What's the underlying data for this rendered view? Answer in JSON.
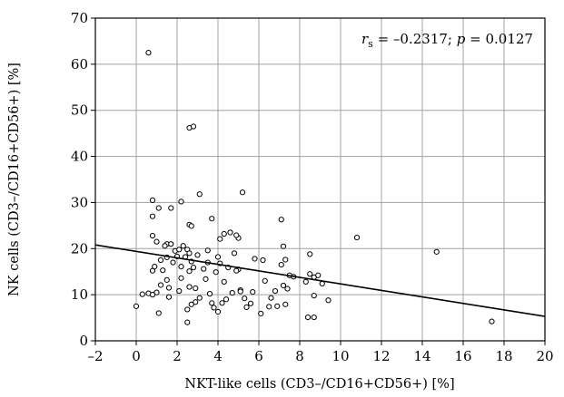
{
  "chart_data": {
    "type": "scatter",
    "xlabel": "NKT-like cells (CD3–/CD16+CD56+) [%]",
    "ylabel": "NK cells (CD3–/CD16+CD56+) [%]",
    "xlim": [
      -2,
      20
    ],
    "ylim": [
      0,
      70
    ],
    "xticks": [
      -2,
      0,
      2,
      4,
      6,
      8,
      10,
      12,
      14,
      16,
      18,
      20
    ],
    "yticks": [
      0,
      10,
      20,
      30,
      40,
      50,
      60,
      70
    ],
    "grid": true,
    "annotation": {
      "r_symbol": "r",
      "r_subscript": "s",
      "r_value": " = –0.2317; ",
      "p_symbol": "p",
      "p_value": " = 0.0127"
    },
    "trendline": {
      "x": [
        -2,
        20
      ],
      "y": [
        20.8,
        5.3
      ]
    },
    "points": [
      [
        0.6,
        62.5
      ],
      [
        2.6,
        46.2
      ],
      [
        2.8,
        46.5
      ],
      [
        0.8,
        30.5
      ],
      [
        2.2,
        30.2
      ],
      [
        3.1,
        31.8
      ],
      [
        5.2,
        32.2
      ],
      [
        1.1,
        28.8
      ],
      [
        1.7,
        28.8
      ],
      [
        0.8,
        27.0
      ],
      [
        3.7,
        26.5
      ],
      [
        7.1,
        26.3
      ],
      [
        2.6,
        25.2
      ],
      [
        2.7,
        24.9
      ],
      [
        4.3,
        23.2
      ],
      [
        4.6,
        23.5
      ],
      [
        5.0,
        22.3
      ],
      [
        4.9,
        22.9
      ],
      [
        10.8,
        22.4
      ],
      [
        4.1,
        22.1
      ],
      [
        0.8,
        22.8
      ],
      [
        1.0,
        21.5
      ],
      [
        1.5,
        21.0
      ],
      [
        1.7,
        21.0
      ],
      [
        1.4,
        20.6
      ],
      [
        2.3,
        20.6
      ],
      [
        2.5,
        19.8
      ],
      [
        7.2,
        20.5
      ],
      [
        14.7,
        19.3
      ],
      [
        1.9,
        19.5
      ],
      [
        2.1,
        19.8
      ],
      [
        2.6,
        19.0
      ],
      [
        3.5,
        19.6
      ],
      [
        4.8,
        19.0
      ],
      [
        8.5,
        18.8
      ],
      [
        1.5,
        18.1
      ],
      [
        2.0,
        18.3
      ],
      [
        2.4,
        18.2
      ],
      [
        3.0,
        18.6
      ],
      [
        4.0,
        18.2
      ],
      [
        7.3,
        17.6
      ],
      [
        6.2,
        17.5
      ],
      [
        5.8,
        17.8
      ],
      [
        1.2,
        17.5
      ],
      [
        1.8,
        17.0
      ],
      [
        2.7,
        17.2
      ],
      [
        3.5,
        17.0
      ],
      [
        4.1,
        16.8
      ],
      [
        7.1,
        16.5
      ],
      [
        0.9,
        16.1
      ],
      [
        2.2,
        16.1
      ],
      [
        2.8,
        15.9
      ],
      [
        3.3,
        15.6
      ],
      [
        4.5,
        15.9
      ],
      [
        5.0,
        15.5
      ],
      [
        0.8,
        15.2
      ],
      [
        1.3,
        15.3
      ],
      [
        2.6,
        15.1
      ],
      [
        3.9,
        14.9
      ],
      [
        4.9,
        15.2
      ],
      [
        8.5,
        14.5
      ],
      [
        8.7,
        13.8
      ],
      [
        7.5,
        14.2
      ],
      [
        7.7,
        13.9
      ],
      [
        8.9,
        14.2
      ],
      [
        1.5,
        13.2
      ],
      [
        2.2,
        13.6
      ],
      [
        3.4,
        13.4
      ],
      [
        4.3,
        12.8
      ],
      [
        6.3,
        13.0
      ],
      [
        8.3,
        12.8
      ],
      [
        9.1,
        12.4
      ],
      [
        1.2,
        12.1
      ],
      [
        1.6,
        11.5
      ],
      [
        2.6,
        11.7
      ],
      [
        2.9,
        11.4
      ],
      [
        7.2,
        12.0
      ],
      [
        7.4,
        11.3
      ],
      [
        5.1,
        11.0
      ],
      [
        0.3,
        10.1
      ],
      [
        0.6,
        10.3
      ],
      [
        0.8,
        10.0
      ],
      [
        1.0,
        10.5
      ],
      [
        2.1,
        10.8
      ],
      [
        3.6,
        10.2
      ],
      [
        4.7,
        10.4
      ],
      [
        5.1,
        10.7
      ],
      [
        5.7,
        10.6
      ],
      [
        6.8,
        10.8
      ],
      [
        8.7,
        9.8
      ],
      [
        1.6,
        9.5
      ],
      [
        3.1,
        9.3
      ],
      [
        4.4,
        9.0
      ],
      [
        5.3,
        9.2
      ],
      [
        6.6,
        9.3
      ],
      [
        9.4,
        8.8
      ],
      [
        2.9,
        8.4
      ],
      [
        3.7,
        8.2
      ],
      [
        4.2,
        8.2
      ],
      [
        5.6,
        8.1
      ],
      [
        6.9,
        7.5
      ],
      [
        0.0,
        7.5
      ],
      [
        2.7,
        7.9
      ],
      [
        3.8,
        7.2
      ],
      [
        5.4,
        7.3
      ],
      [
        6.5,
        7.4
      ],
      [
        7.3,
        7.9
      ],
      [
        1.1,
        6.0
      ],
      [
        2.5,
        6.8
      ],
      [
        4.0,
        6.3
      ],
      [
        6.1,
        5.9
      ],
      [
        8.4,
        5.1
      ],
      [
        8.7,
        5.1
      ],
      [
        2.5,
        4.0
      ],
      [
        17.4,
        4.2
      ]
    ]
  }
}
